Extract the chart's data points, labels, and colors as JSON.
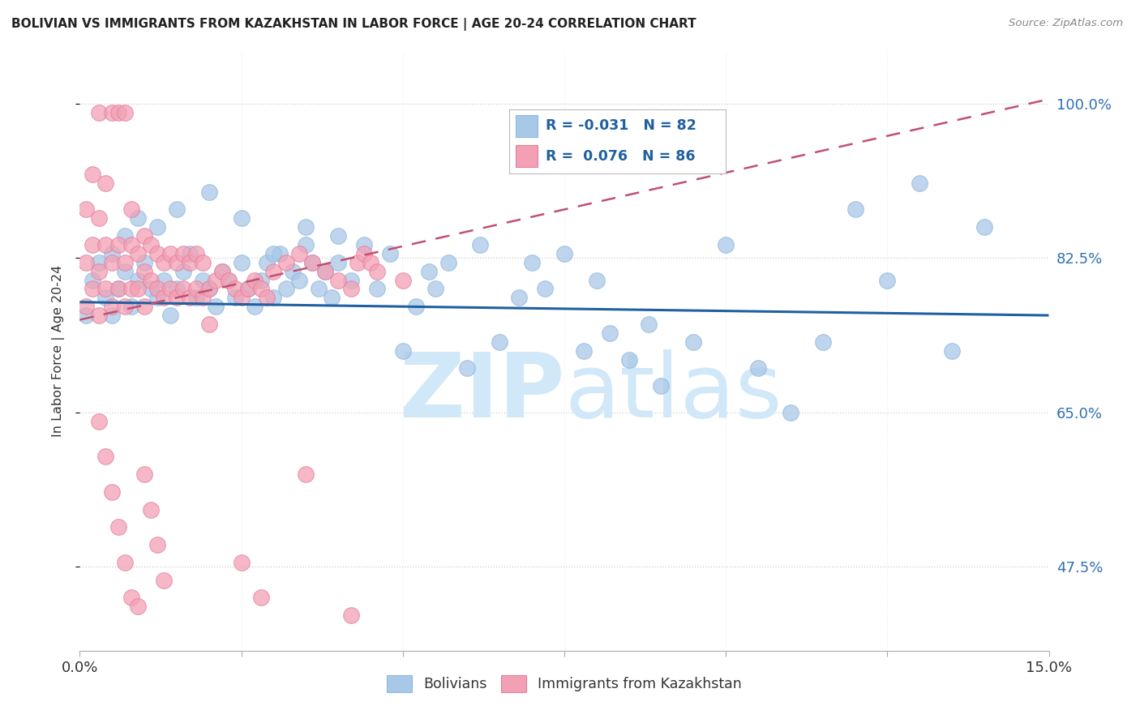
{
  "title": "BOLIVIAN VS IMMIGRANTS FROM KAZAKHSTAN IN LABOR FORCE | AGE 20-24 CORRELATION CHART",
  "source": "Source: ZipAtlas.com",
  "ylabel": "In Labor Force | Age 20-24",
  "ytick_labels": [
    "47.5%",
    "65.0%",
    "82.5%",
    "100.0%"
  ],
  "ytick_values": [
    0.475,
    0.65,
    0.825,
    1.0
  ],
  "xlim": [
    0.0,
    0.15
  ],
  "ylim": [
    0.38,
    1.06
  ],
  "blue_color": "#a8c8e8",
  "blue_edge": "#a8c8e8",
  "pink_color": "#f4a0b4",
  "pink_edge": "#f4a0b4",
  "trend_blue_color": "#2060a0",
  "trend_pink_color": "#c05070",
  "grid_color": "#cccccc",
  "watermark_color": "#d0e8f8",
  "legend_bottom_blue": "Bolivians",
  "legend_bottom_pink": "Immigrants from Kazakhstan",
  "blue_R": "-0.031",
  "blue_N": "82",
  "pink_R": "0.076",
  "pink_N": "86",
  "blue_trend_x0": 0.0,
  "blue_trend_x1": 0.15,
  "blue_trend_y0": 0.775,
  "blue_trend_y1": 0.76,
  "pink_trend_x0": 0.0,
  "pink_trend_x1": 0.15,
  "pink_trend_y0": 0.755,
  "pink_trend_y1": 1.005,
  "blue_x": [
    0.001,
    0.002,
    0.003,
    0.004,
    0.005,
    0.006,
    0.007,
    0.008,
    0.009,
    0.01,
    0.011,
    0.012,
    0.013,
    0.014,
    0.015,
    0.016,
    0.017,
    0.018,
    0.019,
    0.02,
    0.021,
    0.022,
    0.023,
    0.024,
    0.025,
    0.026,
    0.027,
    0.028,
    0.029,
    0.03,
    0.031,
    0.032,
    0.033,
    0.034,
    0.035,
    0.036,
    0.037,
    0.038,
    0.039,
    0.04,
    0.042,
    0.044,
    0.046,
    0.048,
    0.05,
    0.052,
    0.054,
    0.055,
    0.057,
    0.06,
    0.062,
    0.065,
    0.068,
    0.07,
    0.072,
    0.075,
    0.078,
    0.08,
    0.082,
    0.085,
    0.088,
    0.09,
    0.095,
    0.1,
    0.105,
    0.11,
    0.115,
    0.12,
    0.125,
    0.13,
    0.135,
    0.14,
    0.005,
    0.007,
    0.009,
    0.012,
    0.015,
    0.02,
    0.025,
    0.03,
    0.035,
    0.04
  ],
  "blue_y": [
    0.76,
    0.8,
    0.82,
    0.78,
    0.76,
    0.79,
    0.81,
    0.77,
    0.8,
    0.82,
    0.79,
    0.78,
    0.8,
    0.76,
    0.79,
    0.81,
    0.83,
    0.78,
    0.8,
    0.79,
    0.77,
    0.81,
    0.8,
    0.78,
    0.82,
    0.79,
    0.77,
    0.8,
    0.82,
    0.78,
    0.83,
    0.79,
    0.81,
    0.8,
    0.84,
    0.82,
    0.79,
    0.81,
    0.78,
    0.82,
    0.8,
    0.84,
    0.79,
    0.83,
    0.72,
    0.77,
    0.81,
    0.79,
    0.82,
    0.7,
    0.84,
    0.73,
    0.78,
    0.82,
    0.79,
    0.83,
    0.72,
    0.8,
    0.74,
    0.71,
    0.75,
    0.68,
    0.73,
    0.84,
    0.7,
    0.65,
    0.73,
    0.88,
    0.8,
    0.91,
    0.72,
    0.86,
    0.83,
    0.85,
    0.87,
    0.86,
    0.88,
    0.9,
    0.87,
    0.83,
    0.86,
    0.85
  ],
  "pink_x": [
    0.001,
    0.001,
    0.001,
    0.002,
    0.002,
    0.002,
    0.003,
    0.003,
    0.003,
    0.003,
    0.004,
    0.004,
    0.004,
    0.005,
    0.005,
    0.005,
    0.006,
    0.006,
    0.006,
    0.007,
    0.007,
    0.007,
    0.008,
    0.008,
    0.008,
    0.009,
    0.009,
    0.01,
    0.01,
    0.01,
    0.011,
    0.011,
    0.012,
    0.012,
    0.013,
    0.013,
    0.014,
    0.014,
    0.015,
    0.015,
    0.016,
    0.016,
    0.017,
    0.017,
    0.018,
    0.018,
    0.019,
    0.019,
    0.02,
    0.02,
    0.021,
    0.022,
    0.023,
    0.024,
    0.025,
    0.026,
    0.027,
    0.028,
    0.029,
    0.03,
    0.032,
    0.034,
    0.036,
    0.038,
    0.04,
    0.042,
    0.043,
    0.044,
    0.045,
    0.046,
    0.05,
    0.003,
    0.004,
    0.005,
    0.006,
    0.007,
    0.008,
    0.009,
    0.01,
    0.011,
    0.012,
    0.013,
    0.025,
    0.028,
    0.035,
    0.042
  ],
  "pink_y": [
    0.77,
    0.82,
    0.88,
    0.79,
    0.84,
    0.92,
    0.76,
    0.81,
    0.87,
    0.99,
    0.79,
    0.84,
    0.91,
    0.77,
    0.82,
    0.99,
    0.79,
    0.84,
    0.99,
    0.77,
    0.82,
    0.99,
    0.79,
    0.84,
    0.88,
    0.79,
    0.83,
    0.77,
    0.81,
    0.85,
    0.8,
    0.84,
    0.79,
    0.83,
    0.78,
    0.82,
    0.79,
    0.83,
    0.78,
    0.82,
    0.79,
    0.83,
    0.78,
    0.82,
    0.79,
    0.83,
    0.78,
    0.82,
    0.79,
    0.75,
    0.8,
    0.81,
    0.8,
    0.79,
    0.78,
    0.79,
    0.8,
    0.79,
    0.78,
    0.81,
    0.82,
    0.83,
    0.82,
    0.81,
    0.8,
    0.79,
    0.82,
    0.83,
    0.82,
    0.81,
    0.8,
    0.64,
    0.6,
    0.56,
    0.52,
    0.48,
    0.44,
    0.43,
    0.58,
    0.54,
    0.5,
    0.46,
    0.48,
    0.44,
    0.58,
    0.42
  ]
}
